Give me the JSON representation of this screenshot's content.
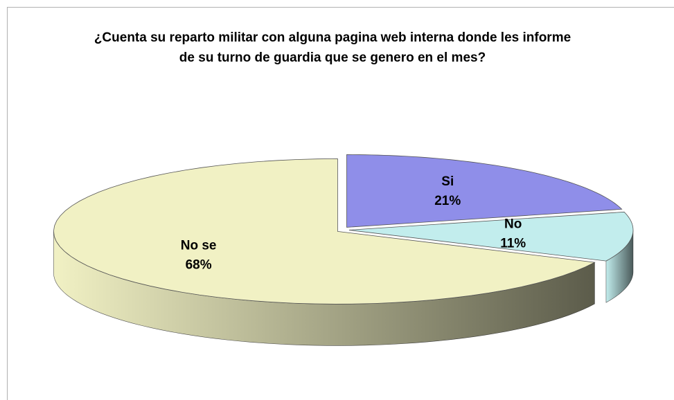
{
  "chart_data": {
    "type": "pie3d",
    "title": "¿Cuenta su reparto militar con alguna pagina web interna donde les informe de su turno de guardia que se genero en el mes?",
    "categories": [
      "Si",
      "No",
      "No se"
    ],
    "values": [
      21,
      11,
      68
    ],
    "value_labels": [
      "21%",
      "11%",
      "68%"
    ],
    "colors": [
      "#8f8ee9",
      "#c2eded",
      "#f1f1c4"
    ]
  }
}
